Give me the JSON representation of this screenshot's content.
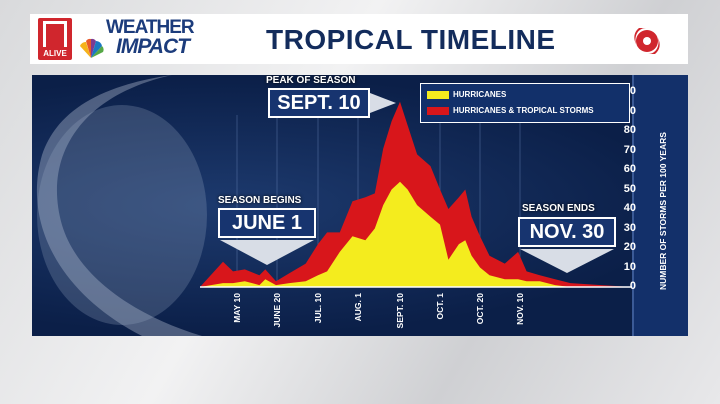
{
  "header": {
    "brand_logo": "11 ALIVE",
    "brand_logo_text": "ALIVE",
    "show_name_line1": "WEATHER",
    "show_name_line2": "IMPACT",
    "title": "TROPICAL TIMELINE",
    "icon": "hurricane-icon"
  },
  "callouts": {
    "peak": {
      "heading": "PEAK OF SEASON",
      "date": "SEPT. 10"
    },
    "begin": {
      "heading": "SEASON BEGINS",
      "date": "JUNE 1"
    },
    "end": {
      "heading": "SEASON ENDS",
      "date": "NOV. 30"
    }
  },
  "chart_data": {
    "type": "area",
    "ylabel": "NUMBER OF STORMS PER 100 YEARS",
    "ylim": [
      0,
      100
    ],
    "yticks": [
      0,
      10,
      20,
      30,
      40,
      50,
      60,
      70,
      80,
      90,
      100
    ],
    "xticks": [
      {
        "label": "MAY 10",
        "date": "05-10"
      },
      {
        "label": "JUNE 20",
        "date": "06-20"
      },
      {
        "label": "JUL. 10",
        "date": "07-10"
      },
      {
        "label": "AUG. 1",
        "date": "08-01"
      },
      {
        "label": "SEPT. 10",
        "date": "09-10"
      },
      {
        "label": "OCT. 1",
        "date": "10-01"
      },
      {
        "label": "OCT. 20",
        "date": "10-20"
      },
      {
        "label": "NOV. 10",
        "date": "11-10"
      }
    ],
    "grid": "vertical",
    "legend": "top-right",
    "x": [
      "04-03",
      "04-26",
      "05-06",
      "05-18",
      "06-02",
      "06-08",
      "06-19",
      "06-26",
      "07-04",
      "07-10",
      "07-15",
      "07-22",
      "07-29",
      "08-08",
      "08-17",
      "08-25",
      "09-02",
      "09-10",
      "09-14",
      "09-19",
      "09-26",
      "10-01",
      "10-05",
      "10-10",
      "10-13",
      "10-16",
      "10-20",
      "10-25",
      "11-02",
      "11-09",
      "11-13",
      "11-19",
      "11-26",
      "12-03",
      "12-17",
      "12-31"
    ],
    "series": [
      {
        "name": "HURRICANES & TROPICAL STORMS",
        "color": "#d8161b",
        "values": [
          0,
          13,
          8,
          9,
          6,
          9,
          3,
          7,
          12,
          22,
          28,
          28,
          44,
          46,
          48,
          71,
          85,
          95,
          83,
          68,
          62,
          50,
          40,
          46,
          50,
          36,
          26,
          16,
          12,
          18,
          8,
          6,
          4,
          2,
          1,
          0
        ]
      },
      {
        "name": "HURRICANES",
        "color": "#f4ec1e",
        "values": [
          0,
          2,
          2,
          3,
          1,
          4,
          1,
          2,
          3,
          6,
          8,
          18,
          26,
          24,
          30,
          42,
          50,
          54,
          50,
          42,
          36,
          32,
          14,
          22,
          24,
          16,
          10,
          6,
          4,
          4,
          3,
          3,
          1,
          0,
          0,
          0
        ]
      }
    ]
  }
}
